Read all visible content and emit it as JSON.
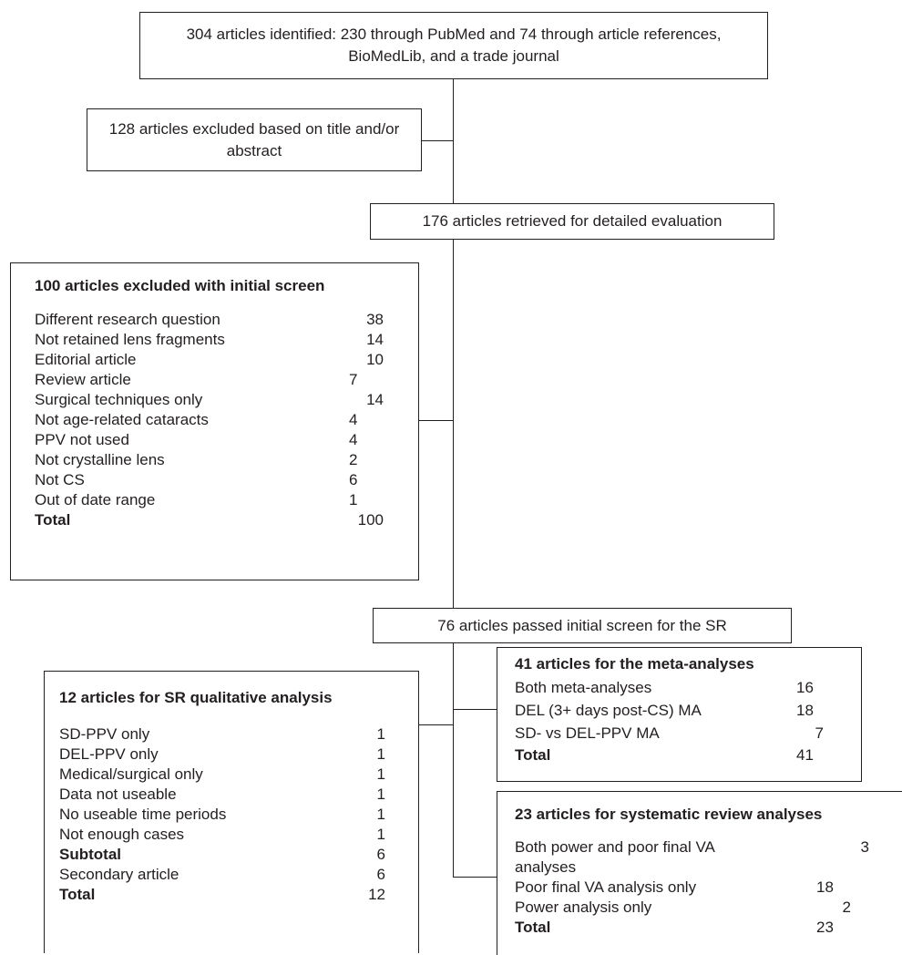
{
  "top_box": "304 articles identified: 230 through PubMed and 74 through article references, BioMedLib, and a trade journal",
  "excluded_title_box": "128 articles excluded based on title and/or abstract",
  "retrieved_box": "176 articles retrieved for detailed evaluation",
  "initial_screen_excluded": {
    "title": "100 articles excluded with initial screen",
    "rows": [
      {
        "label": "Different research question",
        "count": "38"
      },
      {
        "label": "Not retained lens fragments",
        "count": "14"
      },
      {
        "label": "Editorial article",
        "count": "10"
      },
      {
        "label": "Review article",
        "count": "7"
      },
      {
        "label": "Surgical techniques only",
        "count": "14"
      },
      {
        "label": "Not age-related cataracts",
        "count": "4"
      },
      {
        "label": "PPV not used",
        "count": "4"
      },
      {
        "label": "Not crystalline lens",
        "count": "2"
      },
      {
        "label": "Not CS",
        "count": "6"
      },
      {
        "label": "Out of date range",
        "count": "1"
      }
    ],
    "total_label": "Total",
    "total_count": "100"
  },
  "passed_box": "76 articles passed initial screen for the SR",
  "qualitative": {
    "title": "12 articles for SR qualitative analysis",
    "rows": [
      {
        "label": "SD-PPV only",
        "count": "1"
      },
      {
        "label": "DEL-PPV only",
        "count": "1"
      },
      {
        "label": "Medical/surgical only",
        "count": "1"
      },
      {
        "label": "Data not useable",
        "count": "1"
      },
      {
        "label": "No useable time periods",
        "count": "1"
      },
      {
        "label": "Not enough cases",
        "count": "1"
      }
    ],
    "subtotal_label": "Subtotal",
    "subtotal_count": "6",
    "secondary_label": "Secondary article",
    "secondary_count": "6",
    "total_label": "Total",
    "total_count": "12"
  },
  "meta": {
    "title": "41 articles for the meta-analyses",
    "rows": [
      {
        "label": "Both meta-analyses",
        "count": "16"
      },
      {
        "label": "DEL (3+ days post-CS) MA",
        "count": "18"
      },
      {
        "label": "SD- vs DEL-PPV MA",
        "count": "7"
      }
    ],
    "total_label": "Total",
    "total_count": "41"
  },
  "systematic": {
    "title": "23 articles for systematic review analyses",
    "rows": [
      {
        "label": "Both power and poor final VA analyses",
        "count": "3"
      },
      {
        "label": "Poor final VA analysis only",
        "count": "18"
      },
      {
        "label": "Power analysis only",
        "count": "2"
      }
    ],
    "total_label": "Total",
    "total_count": "23"
  }
}
